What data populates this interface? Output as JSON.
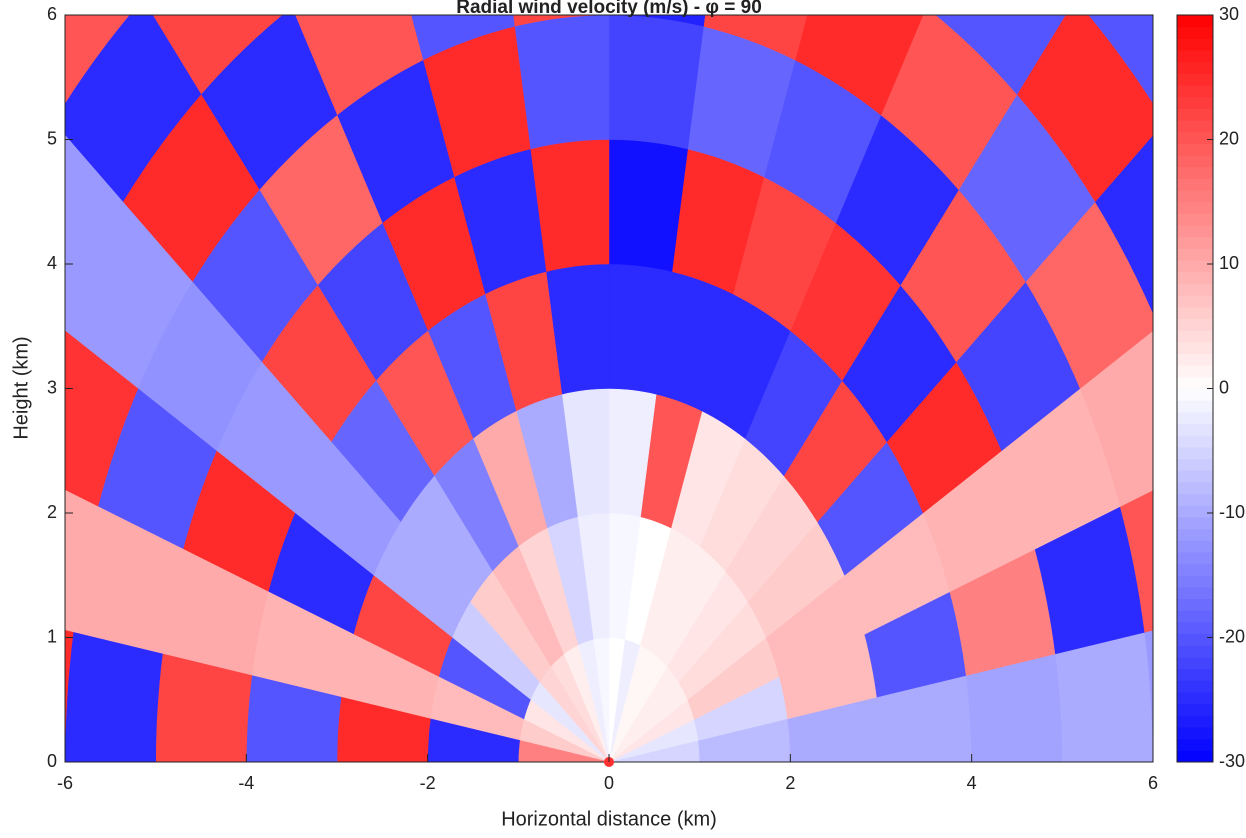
{
  "chart_data": {
    "type": "rhi",
    "title": "Radial wind velocity (m/s) - φ = 90",
    "x_label": "Horizontal distance (km)",
    "y_label": "Height (km)",
    "xlim": [
      -6,
      6
    ],
    "xticks": [
      -6,
      -4,
      -2,
      0,
      2,
      4,
      6
    ],
    "ylim": [
      0,
      6
    ],
    "yticks": [
      0,
      1,
      2,
      3,
      4,
      5,
      6
    ],
    "clim": [
      -30,
      30
    ],
    "cticks": [
      -30,
      -20,
      -10,
      0,
      10,
      20,
      30
    ],
    "colormap": [
      "#0000ff",
      "#ffffff",
      "#ff0000"
    ],
    "gate_km": 1,
    "sectors": [
      {
        "start": 0,
        "end": 10,
        "values": [
          -5,
          -8,
          -10,
          -10,
          -11,
          -10,
          -12,
          -10,
          -10
        ]
      },
      {
        "start": 10,
        "end": 20,
        "values": [
          -3,
          -5,
          8,
          -20,
          15,
          -25,
          20,
          -18,
          22
        ]
      },
      {
        "start": 20,
        "end": 30,
        "values": [
          3,
          6,
          8,
          8,
          9,
          9,
          10,
          9,
          9
        ]
      },
      {
        "start": 30,
        "end": 40,
        "values": [
          2,
          4,
          6,
          -20,
          25,
          -22,
          18,
          -25,
          20
        ]
      },
      {
        "start": 40,
        "end": 50,
        "values": [
          2,
          3,
          5,
          22,
          -25,
          20,
          -18,
          25,
          -20
        ]
      },
      {
        "start": 50,
        "end": 60,
        "values": [
          1,
          2,
          4,
          -22,
          24,
          -25,
          20,
          -20,
          25
        ]
      },
      {
        "start": 60,
        "end": 70,
        "values": [
          1,
          2,
          3,
          -25,
          22,
          -20,
          25,
          -22,
          18
        ]
      },
      {
        "start": 70,
        "end": 80,
        "values": [
          -2,
          0,
          20,
          -25,
          25,
          -18,
          22,
          -25,
          20
        ]
      },
      {
        "start": 80,
        "end": 90,
        "values": [
          0,
          -1,
          -2,
          -25,
          -28,
          -22,
          -26,
          -24,
          -20
        ]
      },
      {
        "start": 90,
        "end": 100,
        "values": [
          -1,
          -2,
          -3,
          -25,
          25,
          -20,
          22,
          -25,
          18
        ]
      },
      {
        "start": 100,
        "end": 110,
        "values": [
          -2,
          -5,
          -10,
          22,
          -25,
          25,
          -20,
          28,
          -22
        ]
      },
      {
        "start": 110,
        "end": 120,
        "values": [
          2,
          5,
          10,
          -20,
          25,
          -25,
          20,
          -22,
          25
        ]
      },
      {
        "start": 120,
        "end": 130,
        "values": [
          4,
          8,
          -15,
          20,
          -22,
          18,
          -25,
          22,
          -20
        ]
      },
      {
        "start": 130,
        "end": 140,
        "values": [
          5,
          6,
          -10,
          -18,
          22,
          -20,
          25,
          -25,
          20
        ]
      },
      {
        "start": 140,
        "end": 150,
        "values": [
          -3,
          -6,
          -10,
          -12,
          -12,
          -13,
          -12,
          -12,
          -12
        ]
      },
      {
        "start": 150,
        "end": 160,
        "values": [
          3,
          -20,
          22,
          -25,
          25,
          -20,
          24,
          -22,
          20
        ]
      },
      {
        "start": 160,
        "end": 170,
        "values": [
          6,
          8,
          9,
          9,
          10,
          10,
          10,
          9,
          9
        ]
      },
      {
        "start": 170,
        "end": 180,
        "values": [
          15,
          -25,
          25,
          -20,
          22,
          -25,
          25,
          -20,
          25
        ]
      }
    ]
  }
}
